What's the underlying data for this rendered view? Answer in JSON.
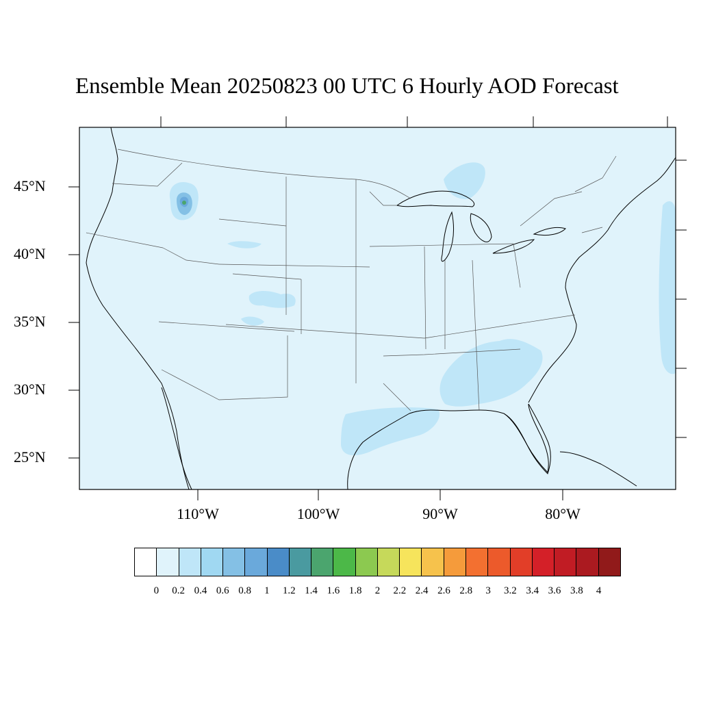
{
  "title": "Ensemble Mean 20250823 00 UTC 6 Hourly AOD Forecast",
  "map": {
    "lat_labels": [
      "45°N",
      "40°N",
      "35°N",
      "30°N",
      "25°N"
    ],
    "lon_labels": [
      "110°W",
      "100°W",
      "90°W",
      "80°W"
    ],
    "background_color": "#e0f3fb",
    "border_color": "#000000"
  },
  "colorbar": {
    "colors": [
      "#ffffff",
      "#e0f3fb",
      "#bfe6f8",
      "#a0d8f2",
      "#84c0e5",
      "#6aa9db",
      "#4a8cc8",
      "#4a9aa0",
      "#4ba56e",
      "#4cb848",
      "#8cc950",
      "#c6d95a",
      "#f6e45c",
      "#f6c24c",
      "#f59b3b",
      "#f37030",
      "#ec5a2b",
      "#e23e28",
      "#d42028",
      "#c11c24",
      "#ab1a20",
      "#911a1a"
    ],
    "labels": [
      "0",
      "0.2",
      "0.4",
      "0.6",
      "0.8",
      "1",
      "1.2",
      "1.4",
      "1.6",
      "1.8",
      "2",
      "2.2",
      "2.4",
      "2.6",
      "2.8",
      "3",
      "3.2",
      "3.4",
      "3.6",
      "3.8",
      "4"
    ]
  }
}
